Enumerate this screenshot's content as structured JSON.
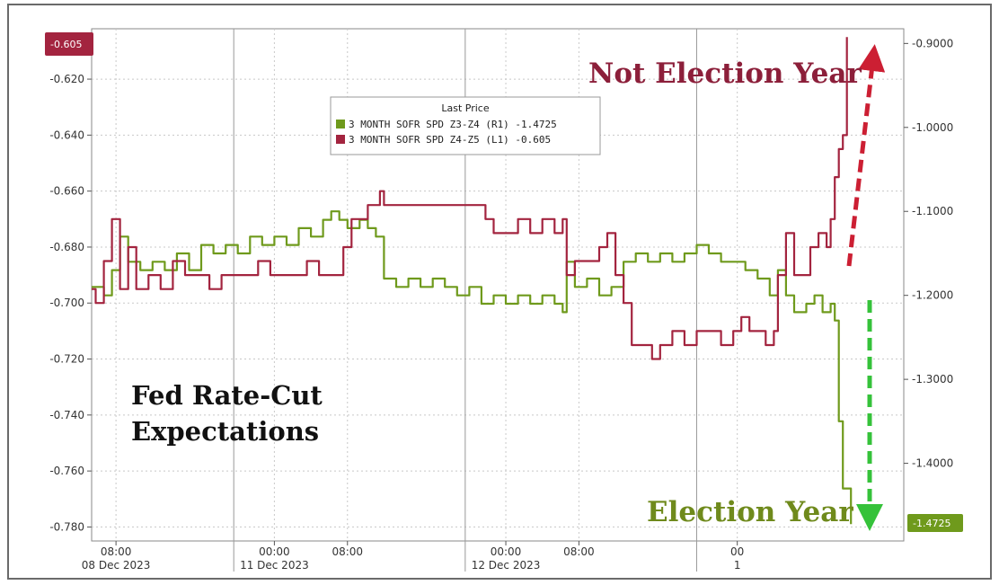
{
  "chart_data": {
    "type": "line",
    "legend": {
      "title": "Last Price",
      "placement": "top-center",
      "entries": [
        {
          "label": "3 MONTH SOFR SPD Z3-Z4  (R1) -1.4725",
          "color": "#6f9a1c"
        },
        {
          "label": "3 MONTH SOFR SPD Z4-Z5  (L1) -0.605",
          "color": "#a3243f"
        }
      ]
    },
    "left_axis": {
      "range": [
        -0.785,
        -0.602
      ],
      "ticks": [
        "-0.620",
        "-0.640",
        "-0.660",
        "-0.680",
        "-0.700",
        "-0.720",
        "-0.740",
        "-0.760",
        "-0.780"
      ],
      "tick_values": [
        -0.62,
        -0.64,
        -0.66,
        -0.68,
        -0.7,
        -0.72,
        -0.74,
        -0.76,
        -0.78
      ]
    },
    "right_axis": {
      "range": [
        -1.4925,
        -0.8825
      ],
      "ticks": [
        "-0.9000",
        "-1.0000",
        "-1.1000",
        "-1.2000",
        "-1.3000",
        "-1.4000"
      ],
      "tick_values": [
        -0.9,
        -1.0,
        -1.1,
        -1.2,
        -1.3,
        -1.4
      ]
    },
    "x_axis": {
      "range": [
        0,
        100
      ],
      "tick_labels": [
        {
          "x": 3,
          "time": "08:00",
          "date": "08 Dec 2023"
        },
        {
          "x": 22.5,
          "time": "00:00",
          "date": "11 Dec 2023"
        },
        {
          "x": 31.5,
          "time": "08:00",
          "date": ""
        },
        {
          "x": 51,
          "time": "00:00",
          "date": "12 Dec 2023"
        },
        {
          "x": 60,
          "time": "08:00",
          "date": ""
        },
        {
          "x": 79.5,
          "time": "00",
          "date": "1"
        }
      ],
      "day_separators": [
        17.5,
        46,
        74.5
      ]
    },
    "grid": true,
    "series": [
      {
        "name": "3 MONTH SOFR SPD Z3-Z4 (R1)",
        "axis": "right",
        "color": "#6f9a1c",
        "points": [
          [
            0,
            -1.19
          ],
          [
            1.5,
            -1.2
          ],
          [
            2.5,
            -1.17
          ],
          [
            3.5,
            -1.13
          ],
          [
            4.5,
            -1.16
          ],
          [
            6,
            -1.17
          ],
          [
            7.5,
            -1.16
          ],
          [
            9,
            -1.17
          ],
          [
            10.5,
            -1.15
          ],
          [
            12,
            -1.17
          ],
          [
            13.5,
            -1.14
          ],
          [
            15,
            -1.15
          ],
          [
            16.5,
            -1.14
          ],
          [
            18,
            -1.15
          ],
          [
            19.5,
            -1.13
          ],
          [
            21,
            -1.14
          ],
          [
            22.5,
            -1.13
          ],
          [
            24,
            -1.14
          ],
          [
            25.5,
            -1.12
          ],
          [
            27,
            -1.13
          ],
          [
            28.5,
            -1.11
          ],
          [
            29.5,
            -1.1
          ],
          [
            30.5,
            -1.11
          ],
          [
            31.5,
            -1.12
          ],
          [
            33,
            -1.11
          ],
          [
            34,
            -1.12
          ],
          [
            35,
            -1.13
          ],
          [
            36,
            -1.18
          ],
          [
            37.5,
            -1.19
          ],
          [
            39,
            -1.18
          ],
          [
            40.5,
            -1.19
          ],
          [
            42,
            -1.18
          ],
          [
            43.5,
            -1.19
          ],
          [
            45,
            -1.2
          ],
          [
            46.5,
            -1.19
          ],
          [
            48,
            -1.21
          ],
          [
            49.5,
            -1.2
          ],
          [
            51,
            -1.21
          ],
          [
            52.5,
            -1.2
          ],
          [
            54,
            -1.21
          ],
          [
            55.5,
            -1.2
          ],
          [
            57,
            -1.21
          ],
          [
            58,
            -1.22
          ],
          [
            58.5,
            -1.16
          ],
          [
            59.5,
            -1.19
          ],
          [
            61,
            -1.18
          ],
          [
            62.5,
            -1.2
          ],
          [
            64,
            -1.19
          ],
          [
            65.5,
            -1.16
          ],
          [
            67,
            -1.15
          ],
          [
            68.5,
            -1.16
          ],
          [
            70,
            -1.15
          ],
          [
            71.5,
            -1.16
          ],
          [
            73,
            -1.15
          ],
          [
            74.5,
            -1.14
          ],
          [
            76,
            -1.15
          ],
          [
            77.5,
            -1.16
          ],
          [
            79,
            -1.16
          ],
          [
            80.5,
            -1.17
          ],
          [
            82,
            -1.18
          ],
          [
            83.5,
            -1.2
          ],
          [
            84.5,
            -1.17
          ],
          [
            85.5,
            -1.2
          ],
          [
            86.5,
            -1.22
          ],
          [
            88,
            -1.21
          ],
          [
            89,
            -1.2
          ],
          [
            90,
            -1.22
          ],
          [
            91,
            -1.21
          ],
          [
            91.5,
            -1.23
          ],
          [
            92,
            -1.35
          ],
          [
            92.5,
            -1.43
          ],
          [
            93.5,
            -1.4725
          ]
        ]
      },
      {
        "name": "3 MONTH SOFR SPD Z4-Z5 (L1)",
        "axis": "left",
        "color": "#a3243f",
        "points": [
          [
            0,
            -0.695
          ],
          [
            0.5,
            -0.7
          ],
          [
            1.5,
            -0.685
          ],
          [
            2.5,
            -0.67
          ],
          [
            3.5,
            -0.695
          ],
          [
            4.5,
            -0.68
          ],
          [
            5.5,
            -0.695
          ],
          [
            7,
            -0.69
          ],
          [
            8.5,
            -0.695
          ],
          [
            10,
            -0.685
          ],
          [
            11.5,
            -0.69
          ],
          [
            13,
            -0.69
          ],
          [
            14.5,
            -0.695
          ],
          [
            16,
            -0.69
          ],
          [
            17.5,
            -0.69
          ],
          [
            19,
            -0.69
          ],
          [
            20.5,
            -0.685
          ],
          [
            22,
            -0.69
          ],
          [
            23.5,
            -0.69
          ],
          [
            25,
            -0.69
          ],
          [
            26.5,
            -0.685
          ],
          [
            28,
            -0.69
          ],
          [
            29.5,
            -0.69
          ],
          [
            31,
            -0.68
          ],
          [
            32,
            -0.67
          ],
          [
            33,
            -0.67
          ],
          [
            34,
            -0.665
          ],
          [
            35,
            -0.665
          ],
          [
            35.5,
            -0.66
          ],
          [
            36,
            -0.665
          ],
          [
            38,
            -0.665
          ],
          [
            40,
            -0.665
          ],
          [
            42,
            -0.665
          ],
          [
            44,
            -0.665
          ],
          [
            46,
            -0.665
          ],
          [
            47.5,
            -0.665
          ],
          [
            48.5,
            -0.67
          ],
          [
            49.5,
            -0.675
          ],
          [
            51,
            -0.675
          ],
          [
            52.5,
            -0.67
          ],
          [
            54,
            -0.675
          ],
          [
            55.5,
            -0.67
          ],
          [
            57,
            -0.675
          ],
          [
            58,
            -0.67
          ],
          [
            58.5,
            -0.69
          ],
          [
            59.5,
            -0.685
          ],
          [
            61,
            -0.685
          ],
          [
            62.5,
            -0.68
          ],
          [
            63.5,
            -0.675
          ],
          [
            64.5,
            -0.69
          ],
          [
            65.5,
            -0.7
          ],
          [
            66.5,
            -0.715
          ],
          [
            68,
            -0.715
          ],
          [
            69,
            -0.72
          ],
          [
            70,
            -0.715
          ],
          [
            71.5,
            -0.71
          ],
          [
            73,
            -0.715
          ],
          [
            74.5,
            -0.71
          ],
          [
            76,
            -0.71
          ],
          [
            77.5,
            -0.715
          ],
          [
            79,
            -0.71
          ],
          [
            80,
            -0.705
          ],
          [
            81,
            -0.71
          ],
          [
            82,
            -0.71
          ],
          [
            83,
            -0.715
          ],
          [
            84,
            -0.71
          ],
          [
            84.5,
            -0.69
          ],
          [
            85.5,
            -0.675
          ],
          [
            86.5,
            -0.69
          ],
          [
            87.5,
            -0.69
          ],
          [
            88.5,
            -0.68
          ],
          [
            89.5,
            -0.675
          ],
          [
            90.5,
            -0.68
          ],
          [
            91,
            -0.67
          ],
          [
            91.5,
            -0.655
          ],
          [
            92,
            -0.645
          ],
          [
            92.5,
            -0.64
          ],
          [
            93,
            -0.605
          ]
        ]
      }
    ],
    "badges": [
      {
        "text": "-0.605",
        "color": "#a3243f",
        "axis": "left",
        "value": -0.605
      },
      {
        "text": "-1.4725",
        "color": "#6f9a1c",
        "axis": "right",
        "value": -1.4725
      }
    ],
    "annotations": {
      "not_election_year": {
        "text": "Not Election Year",
        "color": "#8c1f3a"
      },
      "election_year": {
        "text": "Election Year",
        "color": "#6f8a1c"
      },
      "fed_line1": "Fed Rate-Cut",
      "fed_line2": "Expectations"
    }
  }
}
